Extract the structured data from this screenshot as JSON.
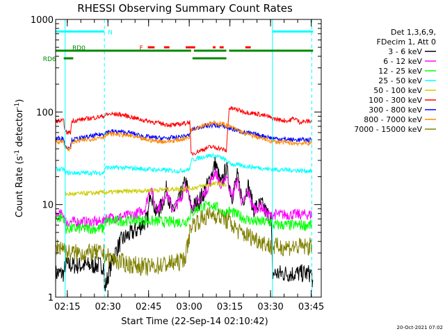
{
  "chart_data": {
    "type": "line",
    "title": "RHESSI Observing Summary Count Rates",
    "xlabel": "Start Time (22-Sep-14 02:10:42)",
    "ylabel": "Count Rate (s",
    "ylabel_sup": "-1",
    "ylabel_tail": " detector",
    "ylabel_end": ")",
    "x_unit": "minutes after 02:10:42",
    "xlim": [
      0,
      98
    ],
    "ylim": [
      1,
      1000
    ],
    "y_scale": "log",
    "x_ticks": [
      {
        "value": 4.3,
        "label": "02:15"
      },
      {
        "value": 19.3,
        "label": "02:30"
      },
      {
        "value": 34.3,
        "label": "02:45"
      },
      {
        "value": 49.3,
        "label": "03:00"
      },
      {
        "value": 64.3,
        "label": "03:15"
      },
      {
        "value": 79.3,
        "label": "03:30"
      },
      {
        "value": 94.3,
        "label": "03:45"
      }
    ],
    "y_ticks": [
      {
        "value": 1,
        "label": "1"
      },
      {
        "value": 10,
        "label": "10"
      },
      {
        "value": 100,
        "label": "100"
      },
      {
        "value": 1000,
        "label": "1000"
      }
    ],
    "legend": {
      "position": "right",
      "header": [
        "Det 1,3,6,9,",
        "FDecim 1, Att 0"
      ],
      "entries": [
        {
          "label": "3 - 6 keV",
          "color": "#000000"
        },
        {
          "label": "6 - 12 keV",
          "color": "#ff00ff"
        },
        {
          "label": "12 - 25 keV",
          "color": "#00ff00"
        },
        {
          "label": "25 - 50 keV",
          "color": "#00ffff"
        },
        {
          "label": "50 - 100 keV",
          "color": "#cccc00"
        },
        {
          "label": "100 - 300 keV",
          "color": "#ff0000"
        },
        {
          "label": "300 - 800 keV",
          "color": "#0000ff"
        },
        {
          "label": "800 - 7000 keV",
          "color": "#ff8800"
        },
        {
          "label": "7000 - 15000 keV",
          "color": "#808000"
        }
      ]
    },
    "eclipse_lines": [
      {
        "x": 3.5,
        "style": "solid"
      },
      {
        "x": 18.0,
        "style": "dashed"
      },
      {
        "x": 80.0,
        "style": "solid"
      },
      {
        "x": 94.5,
        "style": "dashed"
      }
    ],
    "flags": [
      {
        "label": "N",
        "color": "#00ffff",
        "y": 740,
        "segments": [
          [
            0,
            18
          ],
          [
            80,
            95
          ]
        ]
      },
      {
        "label": "F",
        "color": "#ff0000",
        "y": 500,
        "segments": [
          [
            34,
            36.5
          ],
          [
            40,
            42
          ],
          [
            48,
            51.5
          ],
          [
            58,
            59
          ],
          [
            60.5,
            62
          ],
          [
            70,
            72
          ]
        ]
      },
      {
        "label": "RD0",
        "color": "#008800",
        "y": 460,
        "segments": [
          [
            0,
            50
          ],
          [
            51,
            63
          ],
          [
            64,
            95
          ]
        ]
      },
      {
        "label": "RD6",
        "color": "#008800",
        "y": 380,
        "segments": [
          [
            3,
            6.5
          ],
          [
            50.5,
            63
          ]
        ]
      }
    ],
    "series": [
      {
        "name": "3 - 6 keV",
        "color": "#000000",
        "points": [
          [
            0,
            1.8
          ],
          [
            3,
            1.8
          ],
          [
            3.6,
            2.2
          ],
          [
            17.8,
            2.2
          ],
          [
            18,
            1.2
          ],
          [
            20,
            2
          ],
          [
            22,
            3
          ],
          [
            24,
            4
          ],
          [
            26,
            4.5
          ],
          [
            30,
            5.3
          ],
          [
            34,
            7
          ],
          [
            35,
            15
          ],
          [
            37,
            8
          ],
          [
            39,
            9.5
          ],
          [
            41,
            15
          ],
          [
            43,
            8
          ],
          [
            46,
            12
          ],
          [
            48,
            18
          ],
          [
            50,
            9
          ],
          [
            53,
            11
          ],
          [
            56,
            16
          ],
          [
            59,
            28
          ],
          [
            61,
            16
          ],
          [
            63,
            25
          ],
          [
            65,
            12
          ],
          [
            67,
            20
          ],
          [
            69,
            11
          ],
          [
            71,
            16
          ],
          [
            73,
            9
          ],
          [
            76,
            10
          ],
          [
            78,
            8
          ],
          [
            79.5,
            7
          ],
          [
            80,
            1.8
          ],
          [
            94.5,
            1.8
          ],
          [
            95,
            1.2
          ]
        ]
      },
      {
        "name": "6 - 12 keV",
        "color": "#ff00ff",
        "points": [
          [
            0,
            7.8
          ],
          [
            3,
            7.8
          ],
          [
            3.6,
            6.5
          ],
          [
            17.8,
            6.5
          ],
          [
            18,
            7.2
          ],
          [
            22,
            7.2
          ],
          [
            26,
            7.5
          ],
          [
            30,
            8
          ],
          [
            33,
            9
          ],
          [
            35,
            16
          ],
          [
            37,
            9
          ],
          [
            39,
            10
          ],
          [
            41,
            14
          ],
          [
            43,
            9
          ],
          [
            46,
            11
          ],
          [
            48,
            17
          ],
          [
            50,
            9
          ],
          [
            53,
            11
          ],
          [
            56,
            15
          ],
          [
            59,
            23
          ],
          [
            61,
            15
          ],
          [
            63,
            21
          ],
          [
            65,
            12
          ],
          [
            67,
            18
          ],
          [
            69,
            10
          ],
          [
            71,
            14
          ],
          [
            73,
            9
          ],
          [
            76,
            9.5
          ],
          [
            78,
            8
          ],
          [
            79.5,
            7.5
          ],
          [
            80,
            7.8
          ],
          [
            94.5,
            7.8
          ]
        ]
      },
      {
        "name": "12 - 25 keV",
        "color": "#00ff00",
        "points": [
          [
            0,
            7.2
          ],
          [
            3,
            7.2
          ],
          [
            3.6,
            5.5
          ],
          [
            17.8,
            5.5
          ],
          [
            18,
            6.5
          ],
          [
            30,
            6.8
          ],
          [
            40,
            6.5
          ],
          [
            48,
            6.5
          ],
          [
            50,
            8
          ],
          [
            52,
            9
          ],
          [
            55,
            9.5
          ],
          [
            58,
            10
          ],
          [
            60,
            9
          ],
          [
            62,
            8
          ],
          [
            64,
            8.5
          ],
          [
            66,
            8
          ],
          [
            68,
            7.5
          ],
          [
            70,
            7
          ],
          [
            74,
            6.5
          ],
          [
            79.5,
            6.5
          ],
          [
            80,
            6
          ],
          [
            94.5,
            6
          ]
        ]
      },
      {
        "name": "25 - 50 keV",
        "color": "#00ffff",
        "points": [
          [
            0,
            24
          ],
          [
            3,
            24
          ],
          [
            3.6,
            22
          ],
          [
            17.8,
            22
          ],
          [
            18,
            25
          ],
          [
            25,
            25
          ],
          [
            35,
            24
          ],
          [
            45,
            23
          ],
          [
            49.5,
            24
          ],
          [
            50,
            30
          ],
          [
            53,
            32
          ],
          [
            57,
            34
          ],
          [
            60,
            33
          ],
          [
            63,
            30
          ],
          [
            64,
            28
          ],
          [
            66,
            27
          ],
          [
            70,
            26
          ],
          [
            75,
            25
          ],
          [
            79.5,
            24
          ],
          [
            80,
            24
          ],
          [
            94.5,
            23
          ]
        ]
      },
      {
        "name": "50 - 100 keV",
        "color": "#cccc00",
        "points": [
          [
            3.5,
            13
          ],
          [
            6.5,
            13
          ],
          [
            50,
            15
          ],
          [
            55,
            16
          ],
          [
            60,
            17
          ],
          [
            63,
            16
          ]
        ]
      },
      {
        "name": "100 - 300 keV",
        "color": "#ff0000",
        "points": [
          [
            0,
            80
          ],
          [
            3,
            80
          ],
          [
            3.6,
            60
          ],
          [
            5.5,
            60
          ],
          [
            6,
            80
          ],
          [
            17.8,
            90
          ],
          [
            18,
            92
          ],
          [
            20,
            95
          ],
          [
            24,
            94
          ],
          [
            28,
            88
          ],
          [
            32,
            82
          ],
          [
            36,
            78
          ],
          [
            40,
            74
          ],
          [
            44,
            72
          ],
          [
            48,
            76
          ],
          [
            49.5,
            78
          ],
          [
            50,
            35
          ],
          [
            53,
            38
          ],
          [
            57,
            42
          ],
          [
            60,
            41
          ],
          [
            63,
            38
          ],
          [
            64,
            110
          ],
          [
            66,
            108
          ],
          [
            70,
            100
          ],
          [
            74,
            96
          ],
          [
            78,
            90
          ],
          [
            80,
            85
          ],
          [
            83,
            82
          ],
          [
            86,
            80
          ],
          [
            88,
            86
          ],
          [
            90,
            78
          ],
          [
            94.5,
            80
          ]
        ]
      },
      {
        "name": "300 - 800 keV",
        "color": "#0000ff",
        "points": [
          [
            0,
            52
          ],
          [
            3,
            52
          ],
          [
            3.6,
            42
          ],
          [
            5.5,
            42
          ],
          [
            6,
            50
          ],
          [
            17.8,
            58
          ],
          [
            18,
            60
          ],
          [
            20,
            62
          ],
          [
            24,
            61
          ],
          [
            28,
            59
          ],
          [
            32,
            55
          ],
          [
            36,
            53
          ],
          [
            40,
            52
          ],
          [
            44,
            53
          ],
          [
            48,
            55
          ],
          [
            49.5,
            56
          ],
          [
            50,
            64
          ],
          [
            54,
            70
          ],
          [
            58,
            72
          ],
          [
            62,
            70
          ],
          [
            66,
            64
          ],
          [
            70,
            60
          ],
          [
            74,
            57
          ],
          [
            78,
            54
          ],
          [
            80,
            52
          ],
          [
            84,
            51
          ],
          [
            88,
            50
          ],
          [
            94.5,
            50
          ]
        ]
      },
      {
        "name": "800 - 7000 keV",
        "color": "#ff8800",
        "points": [
          [
            0,
            48
          ],
          [
            3,
            48
          ],
          [
            3.6,
            40
          ],
          [
            5.5,
            40
          ],
          [
            6,
            47
          ],
          [
            17.8,
            54
          ],
          [
            18,
            56
          ],
          [
            20,
            58
          ],
          [
            24,
            57
          ],
          [
            28,
            55
          ],
          [
            32,
            51
          ],
          [
            36,
            49
          ],
          [
            40,
            48
          ],
          [
            44,
            49
          ],
          [
            48,
            52
          ],
          [
            49.5,
            53
          ],
          [
            50,
            64
          ],
          [
            54,
            72
          ],
          [
            58,
            76
          ],
          [
            62,
            74
          ],
          [
            66,
            66
          ],
          [
            70,
            58
          ],
          [
            74,
            54
          ],
          [
            78,
            50
          ],
          [
            80,
            48
          ],
          [
            84,
            47
          ],
          [
            88,
            46
          ],
          [
            94.5,
            46
          ]
        ]
      },
      {
        "name": "7000 - 15000 keV",
        "color": "#808000",
        "points": [
          [
            0,
            3.5
          ],
          [
            3,
            3.5
          ],
          [
            3.6,
            3
          ],
          [
            17.8,
            3
          ],
          [
            18,
            2.8
          ],
          [
            22,
            2.5
          ],
          [
            26,
            2.3
          ],
          [
            30,
            2.2
          ],
          [
            34,
            2.1
          ],
          [
            38,
            2.2
          ],
          [
            42,
            2.3
          ],
          [
            46,
            2.4
          ],
          [
            48,
            2.8
          ],
          [
            50,
            6
          ],
          [
            54,
            7
          ],
          [
            58,
            8
          ],
          [
            62,
            7
          ],
          [
            64,
            6.5
          ],
          [
            68,
            5
          ],
          [
            72,
            4.5
          ],
          [
            76,
            4
          ],
          [
            79.5,
            3.5
          ],
          [
            80,
            3.5
          ],
          [
            94.5,
            3.5
          ]
        ]
      }
    ],
    "footer": "20-Oct-2021 07:02"
  }
}
